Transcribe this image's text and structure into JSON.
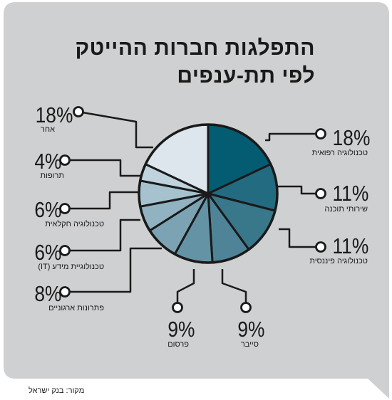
{
  "title_line1": "התפלגות חברות ההייטק",
  "title_line2": "לפי תת-ענפים",
  "source": "מקור: בנק ישראל",
  "colors": {
    "background": "#cfd0d2",
    "line": "#1a1a1a",
    "slices": [
      "#045c73",
      "#236b80",
      "#39778b",
      "#4f8498",
      "#6593a6",
      "#7ca3b4",
      "#90b2c1",
      "#a6c2cf",
      "#bed3dd",
      "#dde6ec"
    ]
  },
  "chart_data": {
    "type": "pie",
    "title": "התפלגות חברות ההייטק לפי תת-ענפים",
    "slices": [
      {
        "label": "טכנולוגיה רפואית",
        "value": 18,
        "display": "18%"
      },
      {
        "label": "שירותי תוכנה",
        "value": 11,
        "display": "11%"
      },
      {
        "label": "טכנולוגיה פיננסית",
        "value": 11,
        "display": "11%"
      },
      {
        "label": "סייבר",
        "value": 9,
        "display": "9%"
      },
      {
        "label": "פרסום",
        "value": 9,
        "display": "9%"
      },
      {
        "label": "פתרונות ארגוניים",
        "value": 8,
        "display": "8%"
      },
      {
        "label": "טכנולוגיית מידע (IT)",
        "value": 6,
        "display": "6%"
      },
      {
        "label": "טכנולוגיה חקלאית",
        "value": 6,
        "display": "6%"
      },
      {
        "label": "תרופות",
        "value": 4,
        "display": "4%"
      },
      {
        "label": "אחר",
        "value": 18,
        "display": "18%"
      }
    ]
  }
}
